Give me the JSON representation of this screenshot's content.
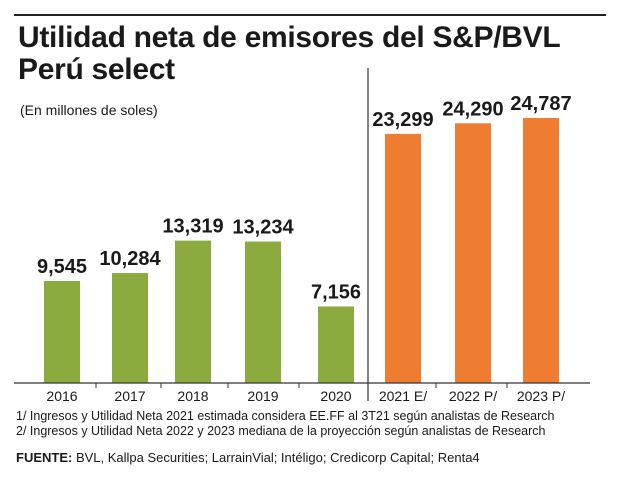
{
  "title": "Utilidad neta de emisores del S&P/BVL Perú select",
  "subtitle": "(En millones de soles)",
  "colors": {
    "actual": "#8bab3f",
    "projected": "#ee7d31"
  },
  "chart_data": {
    "type": "bar",
    "title": "Utilidad neta de emisores del S&P/BVL Perú select",
    "ylabel": "(En millones de soles)",
    "categories": [
      "2016",
      "2017",
      "2018",
      "2019",
      "2020",
      "2021 E/",
      "2022 P/",
      "2023 P/"
    ],
    "values": [
      9545,
      10284,
      13319,
      13234,
      7156,
      23299,
      24290,
      24787
    ],
    "value_labels": [
      "9,545",
      "10,284",
      "13,319",
      "13,234",
      "7,156",
      "23,299",
      "24,290",
      "24,787"
    ],
    "projected": [
      false,
      false,
      false,
      false,
      false,
      true,
      true,
      true
    ],
    "ylim": [
      0,
      26000
    ],
    "grid": false
  },
  "notes": [
    "1/ Ingresos y Utilidad Neta 2021 estimada considera EE.FF al 3T21 según analistas de Research",
    "2/ Ingresos y Utilidad Neta 2022 y 2023 mediana de la proyección según analistas de Research"
  ],
  "source": {
    "label": "FUENTE:",
    "text": " BVL, Kallpa Securities; LarrainVial; Intéligo; Credicorp Capital; Renta4"
  }
}
